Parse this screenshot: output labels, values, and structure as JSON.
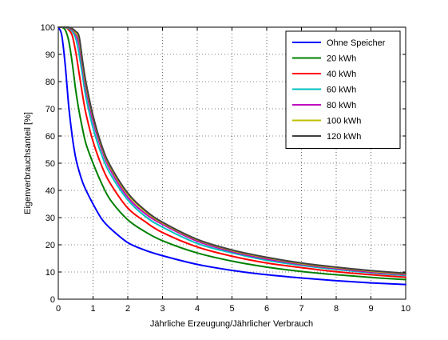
{
  "chart_data": {
    "type": "line",
    "title": "",
    "xlabel": "Jährliche Erzeugung/Jährlicher Verbrauch",
    "ylabel": "Eigenverbrauchsanteil [%]",
    "xlim": [
      0,
      10
    ],
    "ylim": [
      0,
      100
    ],
    "xticks": [
      0,
      1,
      2,
      3,
      4,
      5,
      6,
      7,
      8,
      9,
      10
    ],
    "yticks": [
      0,
      10,
      20,
      30,
      40,
      50,
      60,
      70,
      80,
      90,
      100
    ],
    "grid": true,
    "legend_position": "top-right",
    "x": [
      0,
      0.1,
      0.2,
      0.3,
      0.4,
      0.5,
      0.6,
      0.7,
      0.8,
      1,
      1.25,
      1.5,
      2,
      2.5,
      3,
      4,
      5,
      6,
      7,
      8,
      9,
      10
    ],
    "series": [
      {
        "name": "Ohne Speicher",
        "color": "#0000ff",
        "values": [
          100,
          97,
          86,
          71,
          60,
          52,
          47,
          43,
          40,
          35,
          29.5,
          26,
          20.8,
          18,
          16,
          12.8,
          10.6,
          9,
          7.8,
          6.8,
          6,
          5.4
        ]
      },
      {
        "name": "20 kWh",
        "color": "#008000",
        "values": [
          100,
          100,
          99,
          95,
          87,
          77,
          69,
          62.5,
          57,
          50,
          42.5,
          36.5,
          29.2,
          24.8,
          21.5,
          17,
          14,
          11.8,
          10.2,
          9,
          8,
          7.2
        ]
      },
      {
        "name": "40 kWh",
        "color": "#ff0000",
        "values": [
          100,
          100,
          100,
          99,
          97,
          91,
          83,
          75,
          68,
          58,
          49,
          42.5,
          33.5,
          28.5,
          24.5,
          19.2,
          15.8,
          13.3,
          11.6,
          10.1,
          9,
          8.1
        ]
      },
      {
        "name": "60 kWh",
        "color": "#00bfbf",
        "values": [
          100,
          100,
          100,
          99.5,
          98.5,
          96,
          90,
          82,
          74,
          63,
          53,
          46,
          36.5,
          30.5,
          26.5,
          20.5,
          17,
          14.3,
          12.4,
          10.9,
          9.7,
          8.7
        ]
      },
      {
        "name": "80 kWh",
        "color": "#bf00bf",
        "values": [
          100,
          100,
          100,
          99.8,
          99,
          97.5,
          93.5,
          85,
          77,
          65.5,
          55,
          47.5,
          37.5,
          31.5,
          27.5,
          21.3,
          17.5,
          14.8,
          12.8,
          11.3,
          10,
          9
        ]
      },
      {
        "name": "100 kWh",
        "color": "#bfbf00",
        "values": [
          100,
          100,
          100,
          99.9,
          99.3,
          98,
          95.5,
          86.5,
          78.5,
          67,
          56,
          48.5,
          38.5,
          32.3,
          28,
          21.8,
          17.9,
          15.2,
          13.1,
          11.6,
          10.3,
          9.3
        ]
      },
      {
        "name": "120 kWh",
        "color": "#404040",
        "values": [
          100,
          100,
          100,
          100,
          99.5,
          98.5,
          96.5,
          87.5,
          79.5,
          67.5,
          56.5,
          49,
          39,
          32.7,
          28.3,
          22,
          18.1,
          15.4,
          13.3,
          11.8,
          10.5,
          9.5
        ]
      }
    ]
  }
}
